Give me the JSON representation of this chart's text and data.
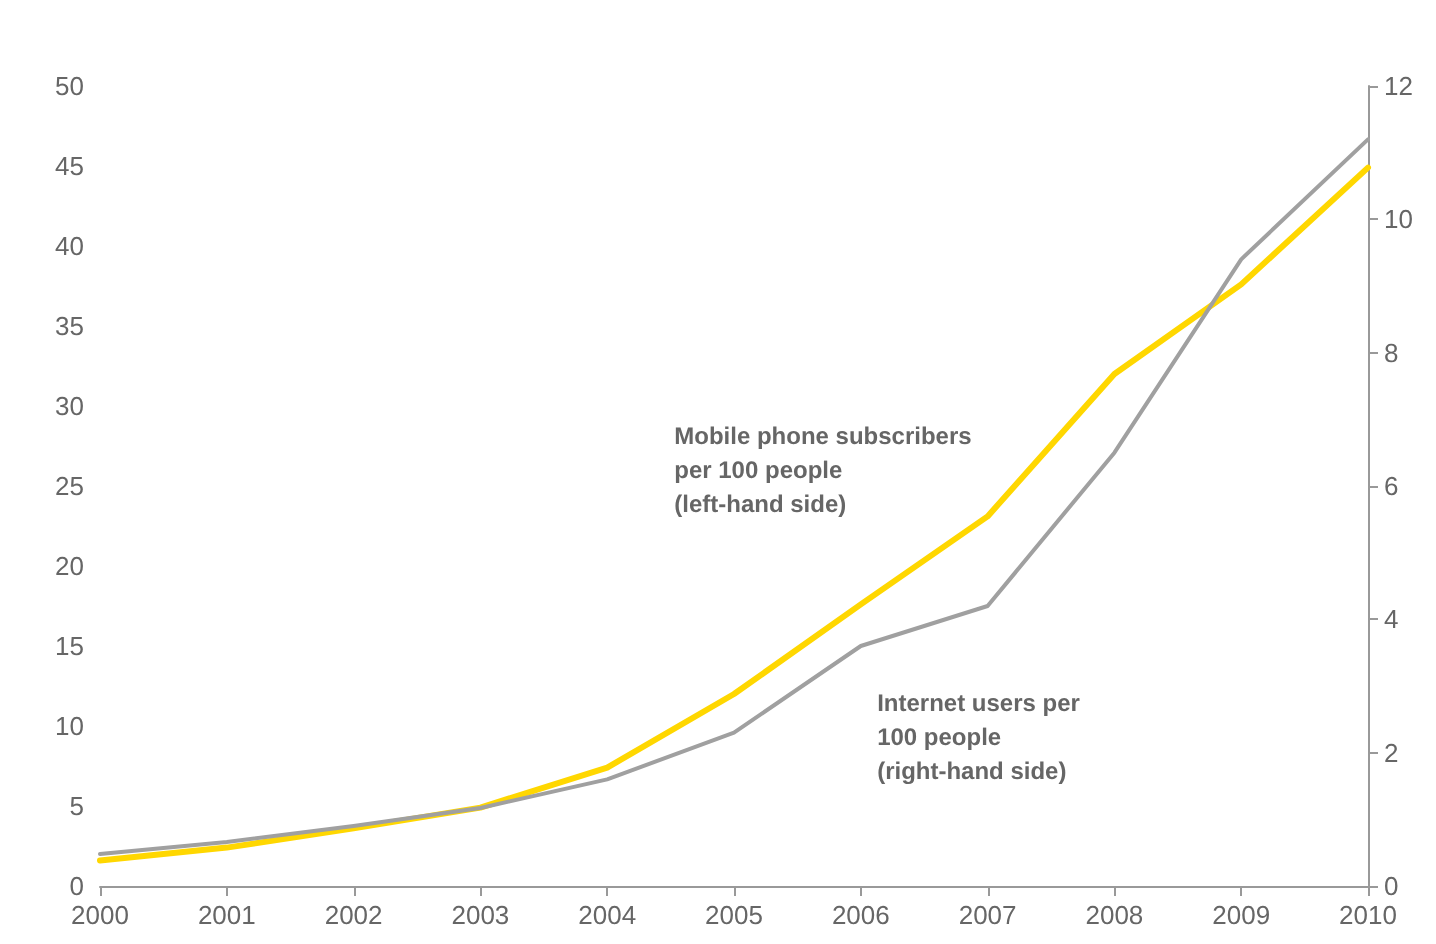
{
  "chart_data": {
    "type": "line",
    "x": [
      2000,
      2001,
      2002,
      2003,
      2004,
      2005,
      2006,
      2007,
      2008,
      2009,
      2010
    ],
    "xlim": [
      2000,
      2010
    ],
    "xticks": [
      2000,
      2001,
      2002,
      2003,
      2004,
      2005,
      2006,
      2007,
      2008,
      2009,
      2010
    ],
    "ylim": [
      0,
      50
    ],
    "yticks": [
      0,
      5,
      10,
      15,
      20,
      25,
      30,
      35,
      40,
      45,
      50
    ],
    "y2lim": [
      0,
      12
    ],
    "y2ticks": [
      0,
      2,
      4,
      6,
      8,
      10,
      12
    ],
    "grid": false,
    "legend": false,
    "marker": "none",
    "line_style": "solid",
    "series": [
      {
        "name": "Mobile phone subscribers\nper 100 people\n(left-hand side)",
        "color": "#ffd700",
        "values": [
          1.6,
          2.4,
          3.6,
          4.9,
          7.4,
          12,
          17.6,
          23.1,
          32,
          37.6,
          44.9
        ]
      },
      {
        "name": "Internet users per\n100 people\n(right-hand side)",
        "color": "#a0a0a0",
        "axis": "y2",
        "values": [
          0.48,
          0.66,
          0.9,
          1.17,
          1.6,
          2.3,
          3.6,
          4.2,
          6.5,
          9.4,
          11.2
        ]
      }
    ]
  }
}
